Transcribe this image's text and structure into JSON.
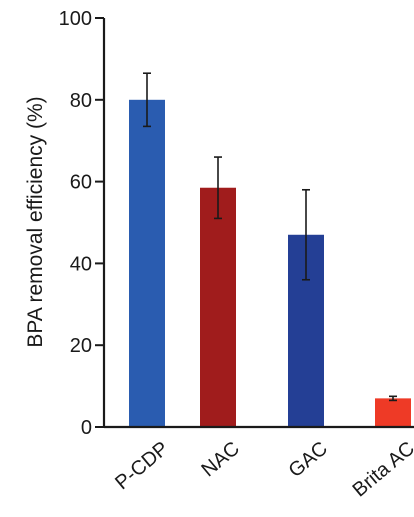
{
  "chart_data": {
    "type": "bar",
    "title": "",
    "xlabel": "",
    "ylabel": "BPA removal efficiency (%)",
    "ylim": [
      0,
      100
    ],
    "yticks": [
      0,
      20,
      40,
      60,
      80,
      100
    ],
    "grid": false,
    "categories": [
      "P-CDP",
      "NAC",
      "GAC",
      "Brita AC"
    ],
    "values": [
      80,
      58.5,
      47,
      7
    ],
    "errors": [
      6.5,
      7.5,
      11,
      0.5
    ],
    "colors": [
      "#2a5cb0",
      "#a01c1c",
      "#243f95",
      "#ee3a26"
    ]
  }
}
